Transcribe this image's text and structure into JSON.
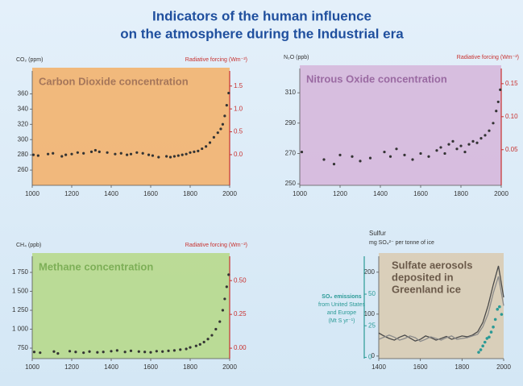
{
  "page_title": [
    "Indicators of the human influence",
    "on the atmosphere during the Industrial era"
  ],
  "chart_data": [
    {
      "type": "scatter",
      "title": [
        "Carbon Dioxide concentration"
      ],
      "ylabel": [
        "CO₂ (ppm)"
      ],
      "y2label": [
        "Radiative forcing (Wm⁻²)"
      ],
      "background": "#f3b36e",
      "title_color": "#a5765a",
      "color": "#333333",
      "y2color": "#c8312f",
      "x": [
        1006,
        1030,
        1080,
        1105,
        1150,
        1170,
        1200,
        1230,
        1260,
        1300,
        1320,
        1340,
        1380,
        1420,
        1450,
        1480,
        1500,
        1530,
        1560,
        1590,
        1610,
        1640,
        1680,
        1700,
        1720,
        1740,
        1760,
        1780,
        1800,
        1820,
        1840,
        1860,
        1880,
        1900,
        1920,
        1940,
        1955,
        1965,
        1975,
        1985,
        1995
      ],
      "values": [
        280,
        279,
        281,
        282,
        278,
        280,
        281,
        283,
        282,
        284,
        286,
        284,
        283,
        281,
        282,
        280,
        281,
        283,
        282,
        280,
        279,
        277,
        278,
        277,
        278,
        279,
        280,
        281,
        283,
        284,
        285,
        288,
        291,
        296,
        303,
        309,
        314,
        320,
        331,
        345,
        361
      ],
      "xlim": [
        1000,
        2000
      ],
      "xticks": [
        1000,
        1200,
        1400,
        1600,
        1800,
        2000
      ],
      "ylim": [
        240,
        390
      ],
      "yticks": [
        260,
        280,
        300,
        320,
        340,
        360
      ],
      "y2lim": [
        -0.67,
        1.83
      ],
      "y2ticks": [
        {
          "value": 0,
          "label": "0.0"
        },
        0.5,
        {
          "value": 1,
          "label": "1.0"
        },
        1.5
      ]
    },
    {
      "type": "scatter",
      "title": [
        "Nitrous Oxide concentration"
      ],
      "ylabel": [
        "N₂O (ppb)"
      ],
      "y2label": [
        "Radiative forcing (Wm⁻²)"
      ],
      "background": "#d6b8dc",
      "title_color": "#9a6aa2",
      "color": "#333333",
      "y2color": "#c8312f",
      "x": [
        1010,
        1120,
        1170,
        1200,
        1260,
        1300,
        1350,
        1420,
        1450,
        1480,
        1520,
        1560,
        1600,
        1640,
        1680,
        1700,
        1720,
        1740,
        1760,
        1780,
        1800,
        1820,
        1840,
        1860,
        1880,
        1900,
        1920,
        1940,
        1960,
        1975,
        1985,
        1995
      ],
      "values": [
        271,
        266,
        263,
        269,
        268,
        265,
        267,
        271,
        268,
        273,
        269,
        266,
        270,
        268,
        272,
        274,
        270,
        276,
        278,
        273,
        275,
        271,
        276,
        278,
        277,
        280,
        282,
        285,
        290,
        298,
        304,
        312
      ],
      "xlim": [
        1000,
        2000
      ],
      "xticks": [
        1000,
        1200,
        1400,
        1600,
        1800,
        2000
      ],
      "ylim": [
        249,
        326
      ],
      "yticks": [
        250,
        270,
        290,
        310
      ],
      "y2lim": [
        -0.004,
        0.173
      ],
      "y2ticks": [
        0.05,
        {
          "value": 0.1,
          "label": "0.10"
        },
        0.15
      ]
    },
    {
      "type": "scatter",
      "title": [
        "Methane concentration"
      ],
      "ylabel": [
        "CH₄ (ppb)"
      ],
      "y2label": [
        "Radiative forcing (Wm⁻²)"
      ],
      "background": "#b7d98c",
      "title_color": "#7daf57",
      "color": "#333333",
      "y2color": "#c8312f",
      "x": [
        1010,
        1040,
        1110,
        1130,
        1190,
        1220,
        1260,
        1290,
        1330,
        1360,
        1400,
        1430,
        1470,
        1500,
        1540,
        1570,
        1600,
        1630,
        1660,
        1690,
        1720,
        1750,
        1780,
        1800,
        1830,
        1850,
        1870,
        1890,
        1910,
        1930,
        1950,
        1965,
        1975,
        1985,
        1995
      ],
      "values": [
        700,
        690,
        705,
        680,
        710,
        700,
        690,
        705,
        695,
        700,
        710,
        720,
        700,
        715,
        705,
        700,
        695,
        710,
        705,
        715,
        720,
        730,
        740,
        760,
        780,
        800,
        830,
        870,
        920,
        1000,
        1100,
        1250,
        1400,
        1560,
        1720
      ],
      "xlim": [
        1000,
        2000
      ],
      "xticks": [
        1000,
        1200,
        1400,
        1600,
        1800,
        2000
      ],
      "ylim": [
        612,
        1963
      ],
      "yticks": [
        750,
        {
          "value": 1000,
          "label": "1 000"
        },
        {
          "value": 1250,
          "label": "1 250"
        },
        {
          "value": 1500,
          "label": "1 500"
        },
        {
          "value": 1750,
          "label": "1 750"
        }
      ],
      "y2lim": [
        -0.077,
        0.68
      ],
      "y2ticks": [
        {
          "value": 0,
          "label": "0.00"
        },
        0.25,
        {
          "value": 0.5,
          "label": "0.50"
        }
      ]
    },
    {
      "type": "line",
      "title": [
        "Sulfate aerosols",
        "deposited in",
        "Greenland ice"
      ],
      "ylabel": [
        "Sulfur",
        "mg SO₄²⁻ per tonne of ice"
      ],
      "y2label": [
        "SO₂ emissions",
        "from United States",
        "and Europe",
        "(Mt S yr⁻¹)"
      ],
      "background": "#d9ccb4",
      "title_color": "#6b5a4a",
      "y2color": "#2a9a96",
      "series": [
        {
          "color": "#4a4a4a",
          "x": [
            1400,
            1425,
            1450,
            1475,
            1500,
            1525,
            1550,
            1575,
            1600,
            1625,
            1650,
            1675,
            1700,
            1725,
            1750,
            1775,
            1800,
            1825,
            1850,
            1875,
            1900,
            1925,
            1950,
            1975,
            2000
          ],
          "values": [
            55,
            48,
            42,
            38,
            45,
            50,
            43,
            36,
            40,
            48,
            44,
            38,
            42,
            47,
            40,
            44,
            48,
            46,
            50,
            58,
            80,
            120,
            170,
            215,
            140
          ]
        },
        {
          "color": "#8a8a8a",
          "x": [
            1400,
            1425,
            1450,
            1475,
            1500,
            1525,
            1550,
            1575,
            1600,
            1625,
            1650,
            1675,
            1700,
            1725,
            1750,
            1775,
            1800,
            1825,
            1850,
            1875,
            1900,
            1925,
            1950,
            1975,
            2000
          ],
          "values": [
            40,
            45,
            50,
            45,
            38,
            42,
            48,
            44,
            35,
            40,
            46,
            42,
            38,
            44,
            48,
            40,
            42,
            44,
            48,
            52,
            70,
            100,
            150,
            190,
            120
          ]
        },
        {
          "color": "#2a9a96",
          "axis": "y2",
          "mode": "markers",
          "x": [
            1880,
            1890,
            1900,
            1910,
            1920,
            1930,
            1940,
            1950,
            1960,
            1970,
            1980,
            1990
          ],
          "values": [
            4,
            6,
            9,
            12,
            15,
            16,
            20,
            24,
            30,
            38,
            40,
            34
          ]
        }
      ],
      "xlim": [
        1400,
        2000
      ],
      "xticks": [
        1400,
        1600,
        1800,
        2000
      ],
      "ylim": [
        -6,
        238
      ],
      "yticks": [
        0,
        100,
        200
      ],
      "y2lim": [
        -1,
        80
      ],
      "y2ticks": [
        0,
        25,
        50
      ]
    }
  ]
}
